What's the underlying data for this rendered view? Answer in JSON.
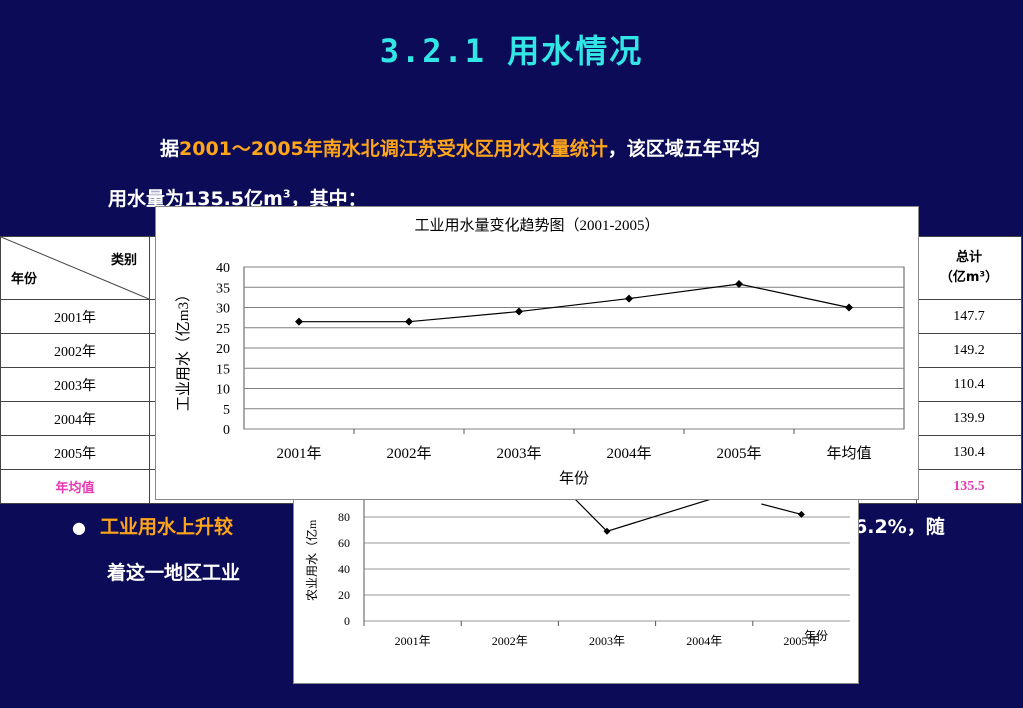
{
  "slide": {
    "title": "3.2.1 用水情况",
    "para_prefix": "据",
    "para_highlight": "2001～2005年南水北调江苏受水区用水水量统计",
    "para_line1_end": "，该区域五年平均",
    "para_line2_a": "用水量为",
    "para_line2_num": "135.5亿m",
    "para_line2_sup": "3",
    "para_line2_end": "，其中：",
    "bullet_symbol": "●",
    "bullet1_visible": "工业用水上升较",
    "bullet1_tail": "6.2%，随",
    "bullet2_visible": "着这一地区工业"
  },
  "table": {
    "header_category": "类别",
    "header_year": "年份",
    "header_total": "总计",
    "header_total_unit": "（亿m³）",
    "rows": [
      {
        "year": "2001年",
        "total": "147.7"
      },
      {
        "year": "2002年",
        "total": "149.2"
      },
      {
        "year": "2003年",
        "total": "110.4"
      },
      {
        "year": "2004年",
        "total": "139.9"
      },
      {
        "year": "2005年",
        "total": "130.4"
      }
    ],
    "avg_label": "年均值",
    "avg_total": "135.5"
  },
  "chart_data": [
    {
      "type": "line",
      "title": "工业用水量变化趋势图（2001-2005）",
      "xlabel": "年份",
      "ylabel": "工业用水（亿m3）",
      "categories": [
        "2001年",
        "2002年",
        "2003年",
        "2004年",
        "2005年",
        "年均值"
      ],
      "values": [
        26.5,
        26.5,
        29,
        32.2,
        35.8,
        30
      ],
      "ylim": [
        0,
        40
      ],
      "yticks": [
        0,
        5,
        10,
        15,
        20,
        25,
        30,
        35,
        40
      ],
      "grid": true,
      "colors": {
        "line": "#000000",
        "grid": "#808080"
      }
    },
    {
      "type": "line",
      "ylabel": "农业用水（亿m",
      "xlabel": "年份",
      "categories": [
        "2001年",
        "2002年",
        "2003年",
        "2004年",
        "2005年"
      ],
      "yticks": [
        0,
        20,
        40,
        60,
        80
      ],
      "visible_points": [
        {
          "x": "2003年",
          "y": 69
        },
        {
          "x": "2005年",
          "y": 82
        }
      ],
      "grid": true
    }
  ]
}
